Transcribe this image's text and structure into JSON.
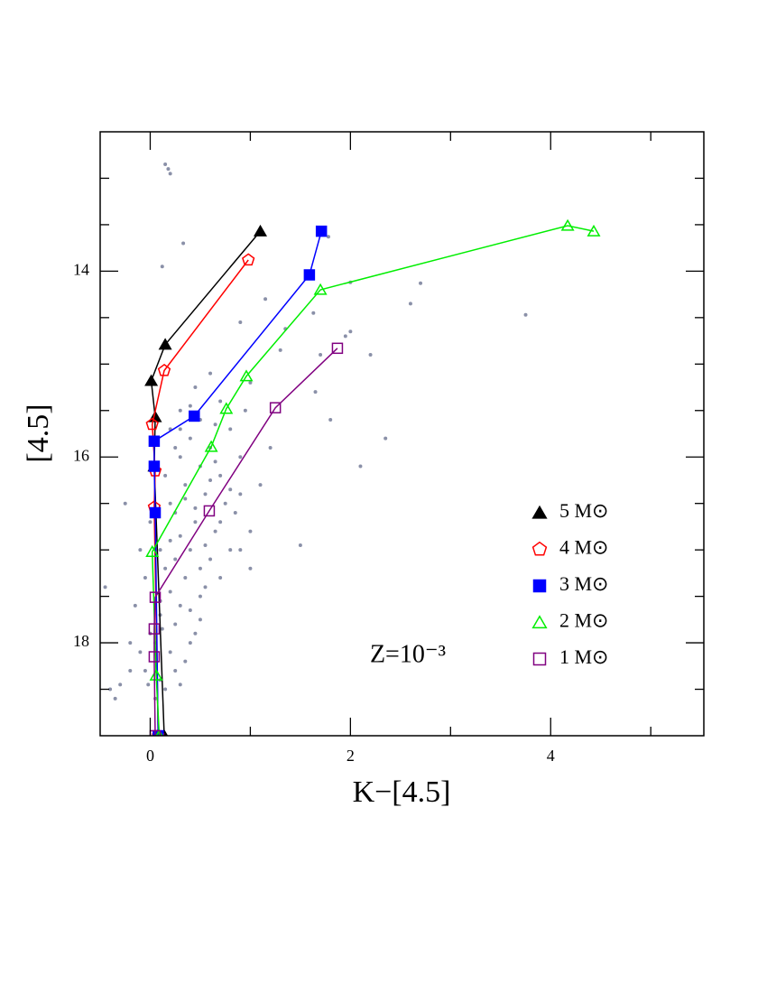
{
  "chart_data": {
    "type": "scatter",
    "xlabel": "K−[4.5]",
    "ylabel": "[4.5]",
    "annotation": "Z=10⁻³",
    "xlim": [
      -0.5,
      5.53
    ],
    "ylim": [
      19,
      12.5
    ],
    "xticks": [
      0,
      2,
      4
    ],
    "yticks": [
      14,
      16,
      18
    ],
    "xminorticks": [
      1,
      3,
      5
    ],
    "yminorticks": [
      13,
      13.5,
      14.5,
      15,
      15.5,
      16.5,
      17,
      17.5,
      18.5
    ],
    "points": {
      "color": "#8a90a8",
      "x": [
        0.15,
        0.2,
        0.18,
        0.33,
        0.12,
        1.78,
        1.63,
        2.0,
        2.7,
        3.75,
        2.6,
        1.15,
        0.9,
        1.35,
        2.2,
        1.95,
        1.7,
        1.65,
        1.8,
        2.35,
        2.1,
        2.0,
        1.5,
        1.0,
        1.3,
        0.6,
        0.45,
        1.2,
        0.9,
        1.0,
        -0.25,
        -0.45,
        -0.4,
        -0.35,
        -0.3,
        -0.2,
        0.3,
        0.5,
        0.7,
        0.8,
        0.4,
        0.6,
        0.3,
        0.5,
        0.7,
        0.9,
        0.35,
        0.55,
        0.75,
        0.25,
        0.45,
        0.65,
        0.85,
        0.2,
        0.4,
        0.6,
        0.8,
        0.15,
        0.35,
        0.55,
        0.3,
        0.5,
        0.1,
        0.25,
        0.45,
        0.05,
        0.2,
        0.35,
        -0.05,
        0.1,
        0.25,
        -0.1,
        0.0,
        -0.15,
        -0.05,
        0.1,
        0.2,
        0.15,
        0.25,
        0.2,
        0.4,
        0.65,
        0.95,
        1.1,
        0.55,
        0.7,
        0.4,
        0.15,
        -0.2,
        -0.1,
        0.3,
        0.6,
        0.45,
        0.3,
        0.5,
        0.2,
        0.0,
        0.3,
        0.8,
        0.65,
        0.35,
        0.1,
        0.05,
        0.4,
        0.5,
        0.7,
        0.9,
        1.0,
        0.25,
        0.12,
        -0.02
      ],
      "values": [
        12.85,
        12.95,
        12.9,
        13.7,
        13.95,
        13.63,
        14.45,
        14.12,
        14.13,
        14.47,
        14.35,
        14.3,
        14.55,
        14.62,
        14.9,
        14.7,
        14.9,
        15.3,
        15.6,
        15.8,
        16.1,
        14.65,
        16.95,
        15.2,
        14.85,
        15.1,
        15.25,
        15.9,
        17.0,
        17.2,
        16.5,
        17.4,
        18.5,
        18.6,
        18.45,
        18.3,
        15.5,
        15.6,
        15.4,
        15.7,
        15.8,
        15.9,
        16.0,
        16.1,
        16.2,
        16.0,
        16.3,
        16.4,
        16.5,
        16.6,
        16.7,
        16.8,
        16.6,
        16.9,
        17.0,
        17.1,
        17.0,
        17.2,
        17.3,
        17.4,
        17.6,
        17.5,
        17.7,
        17.8,
        17.9,
        18.0,
        18.1,
        18.2,
        18.3,
        18.4,
        18.3,
        18.1,
        17.9,
        17.6,
        17.3,
        17.0,
        16.5,
        16.2,
        15.9,
        15.7,
        15.45,
        15.65,
        15.5,
        16.3,
        16.95,
        17.3,
        17.65,
        18.5,
        18.0,
        17.0,
        18.45,
        16.25,
        16.55,
        16.85,
        17.2,
        17.45,
        16.7,
        15.7,
        16.35,
        16.05,
        16.45,
        17.55,
        18.6,
        18.0,
        17.75,
        16.7,
        16.4,
        16.8,
        17.1,
        17.85,
        18.45
      ]
    },
    "series": [
      {
        "name": "5 M⊙",
        "color": "#000000",
        "marker": "triangle",
        "filled": true,
        "x": [
          1.1,
          0.15,
          0.01,
          0.05,
          0.04,
          0.14
        ],
        "values": [
          13.57,
          14.79,
          15.18,
          15.57,
          16.1,
          19.0
        ]
      },
      {
        "name": "4 M⊙",
        "color": "#ff0000",
        "marker": "pentagon",
        "filled": false,
        "x": [
          0.98,
          0.14,
          0.02,
          0.05,
          0.04,
          0.08
        ],
        "values": [
          13.88,
          15.07,
          15.65,
          16.15,
          16.54,
          19.0
        ]
      },
      {
        "name": "3 M⊙",
        "color": "#0000ff",
        "marker": "square",
        "filled": true,
        "x": [
          1.71,
          1.59,
          0.44,
          0.04,
          0.04,
          0.05,
          0.08
        ],
        "values": [
          13.57,
          14.04,
          15.56,
          15.83,
          16.1,
          16.6,
          19.0
        ]
      },
      {
        "name": "2 M⊙",
        "color": "#00ee00",
        "marker": "triangle",
        "filled": false,
        "x": [
          4.43,
          4.17,
          1.7,
          0.96,
          0.76,
          0.61,
          0.02,
          0.06,
          0.09
        ],
        "values": [
          13.57,
          13.51,
          14.2,
          15.13,
          15.48,
          15.89,
          17.02,
          18.35,
          19.0
        ]
      },
      {
        "name": "1 M⊙",
        "color": "#800080",
        "marker": "square",
        "filled": false,
        "x": [
          1.87,
          1.25,
          0.59,
          0.05,
          0.04,
          0.04,
          0.05
        ],
        "values": [
          14.83,
          15.47,
          16.58,
          17.51,
          17.85,
          18.15,
          19.0
        ]
      }
    ]
  }
}
